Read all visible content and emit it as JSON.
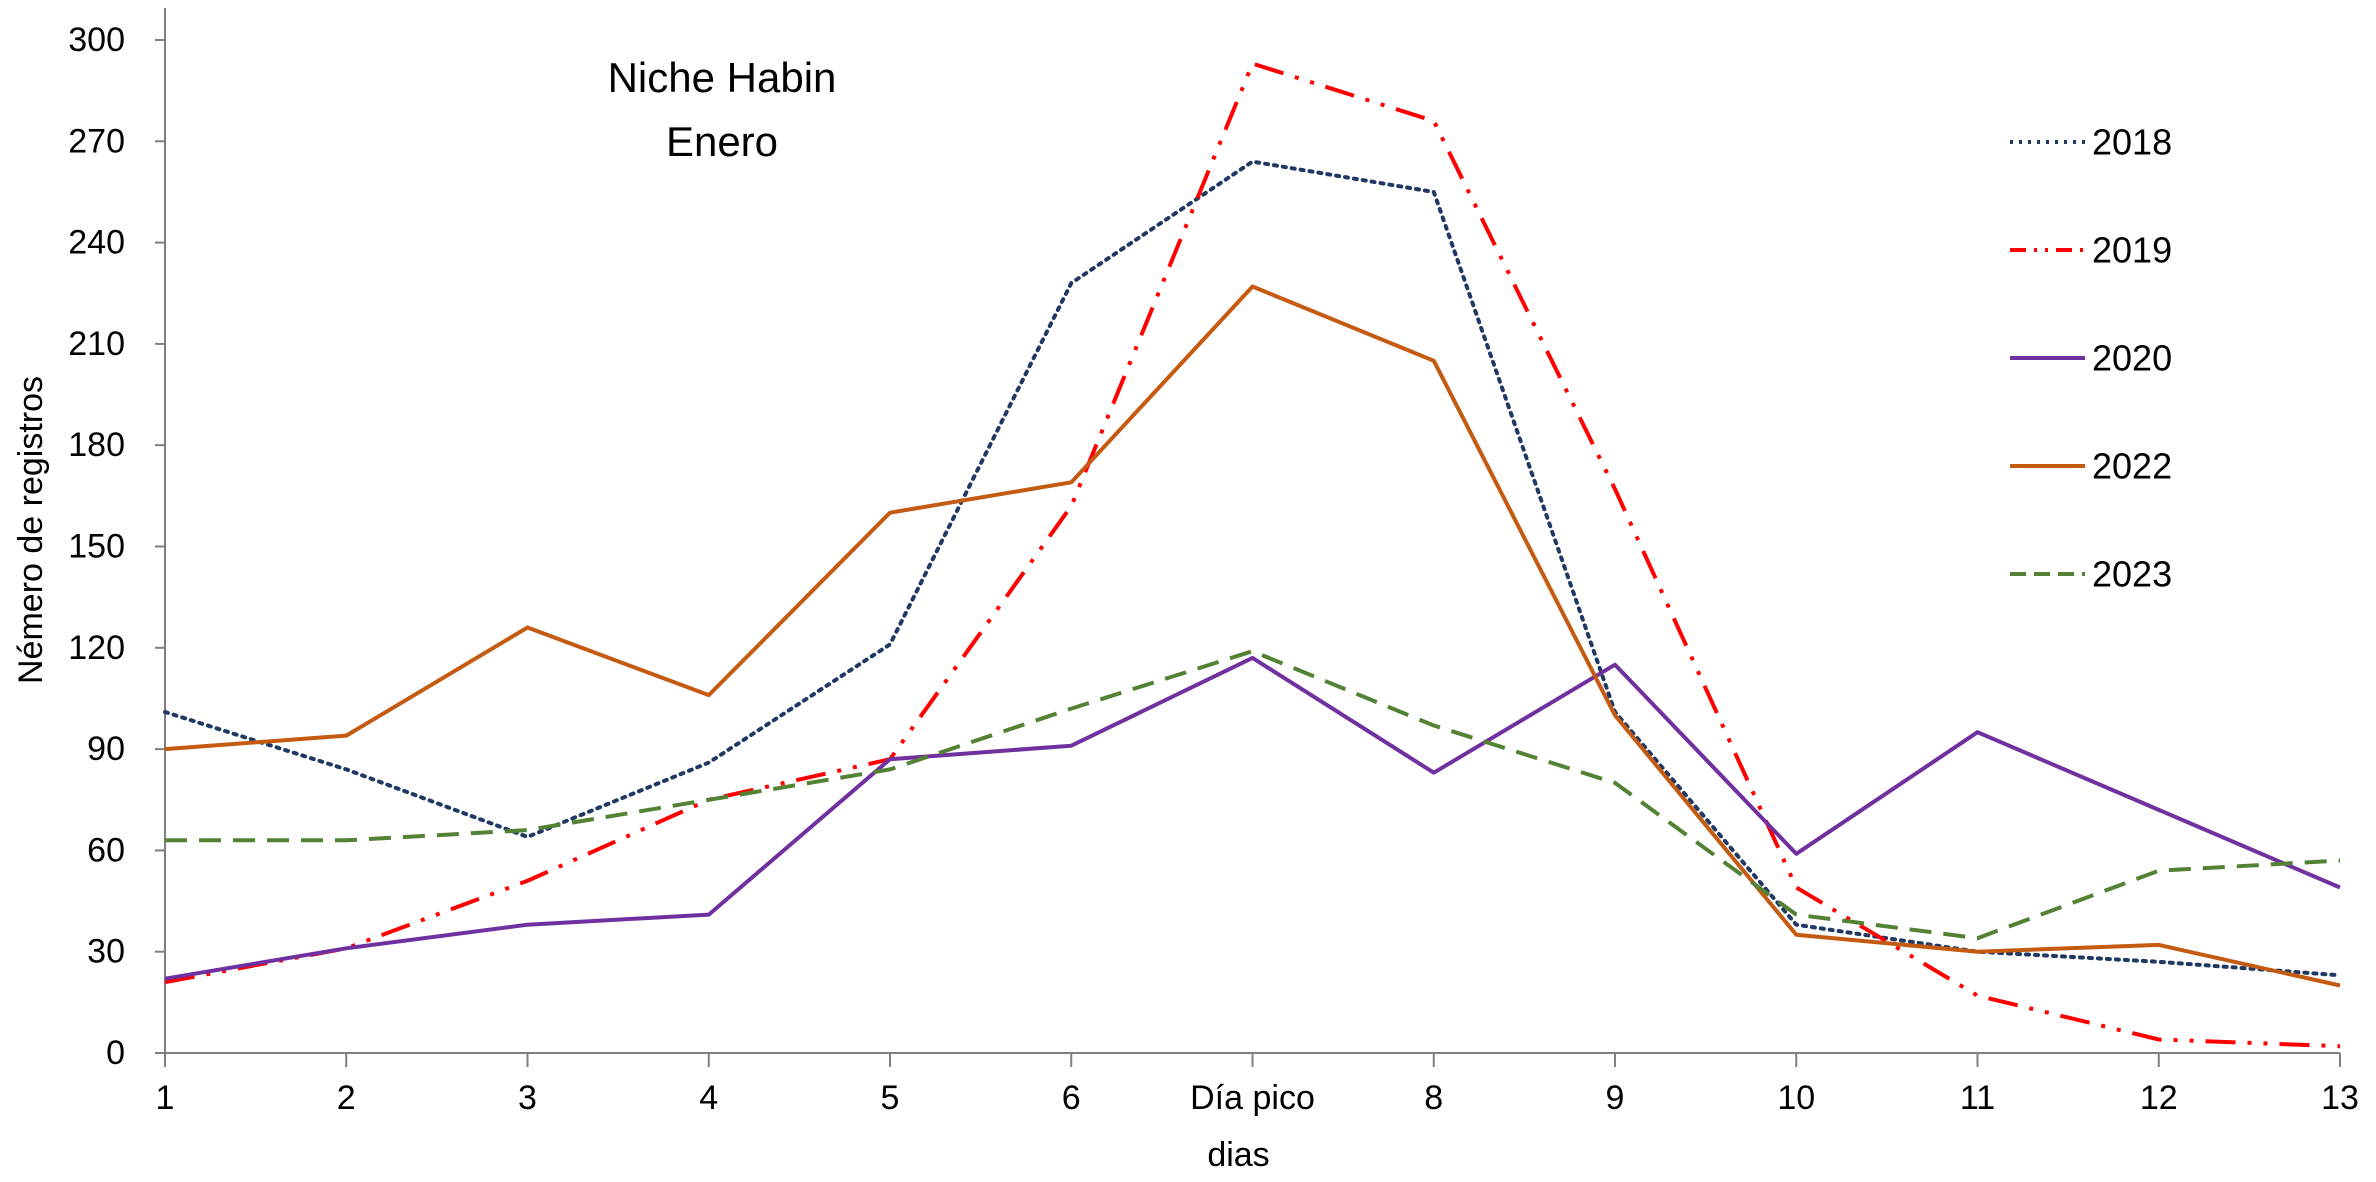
{
  "chart_data": {
    "type": "line",
    "title_lines": [
      "Niche Habin",
      "Enero"
    ],
    "xlabel": "dias",
    "ylabel": "Némero de registros",
    "x": [
      1,
      2,
      3,
      4,
      5,
      6,
      7,
      8,
      9,
      10,
      11,
      12,
      13
    ],
    "x_tick_labels": [
      "1",
      "2",
      "3",
      "4",
      "5",
      "6",
      "Día pico",
      "8",
      "9",
      "10",
      "11",
      "12",
      "13"
    ],
    "xlim": [
      1,
      13
    ],
    "ylim": [
      0,
      300
    ],
    "y_ticks": [
      0,
      30,
      60,
      90,
      120,
      150,
      180,
      210,
      240,
      270,
      300
    ],
    "grid": false,
    "legend_position": "right",
    "series": [
      {
        "name": "2018",
        "color": "#1f3864",
        "dash": "dotted",
        "values": [
          101,
          84,
          64,
          86,
          121,
          228,
          264,
          255,
          101,
          38,
          30,
          27,
          23
        ]
      },
      {
        "name": "2019",
        "color": "#ff0000",
        "dash": "dash-dot-dot",
        "values": [
          21,
          31,
          51,
          75,
          87,
          162,
          293,
          276,
          167,
          49,
          17,
          4,
          2
        ]
      },
      {
        "name": "2020",
        "color": "#7030a0",
        "dash": "solid",
        "values": [
          22,
          31,
          38,
          41,
          87,
          91,
          117,
          83,
          115,
          59,
          95,
          72,
          49
        ]
      },
      {
        "name": "2022",
        "color": "#c55a11",
        "dash": "solid",
        "values": [
          90,
          94,
          126,
          106,
          160,
          169,
          227,
          205,
          100,
          35,
          30,
          32,
          20
        ]
      },
      {
        "name": "2023",
        "color": "#548235",
        "dash": "dashed",
        "values": [
          63,
          63,
          66,
          75,
          84,
          102,
          119,
          97,
          80,
          41,
          34,
          54,
          57
        ]
      }
    ]
  }
}
